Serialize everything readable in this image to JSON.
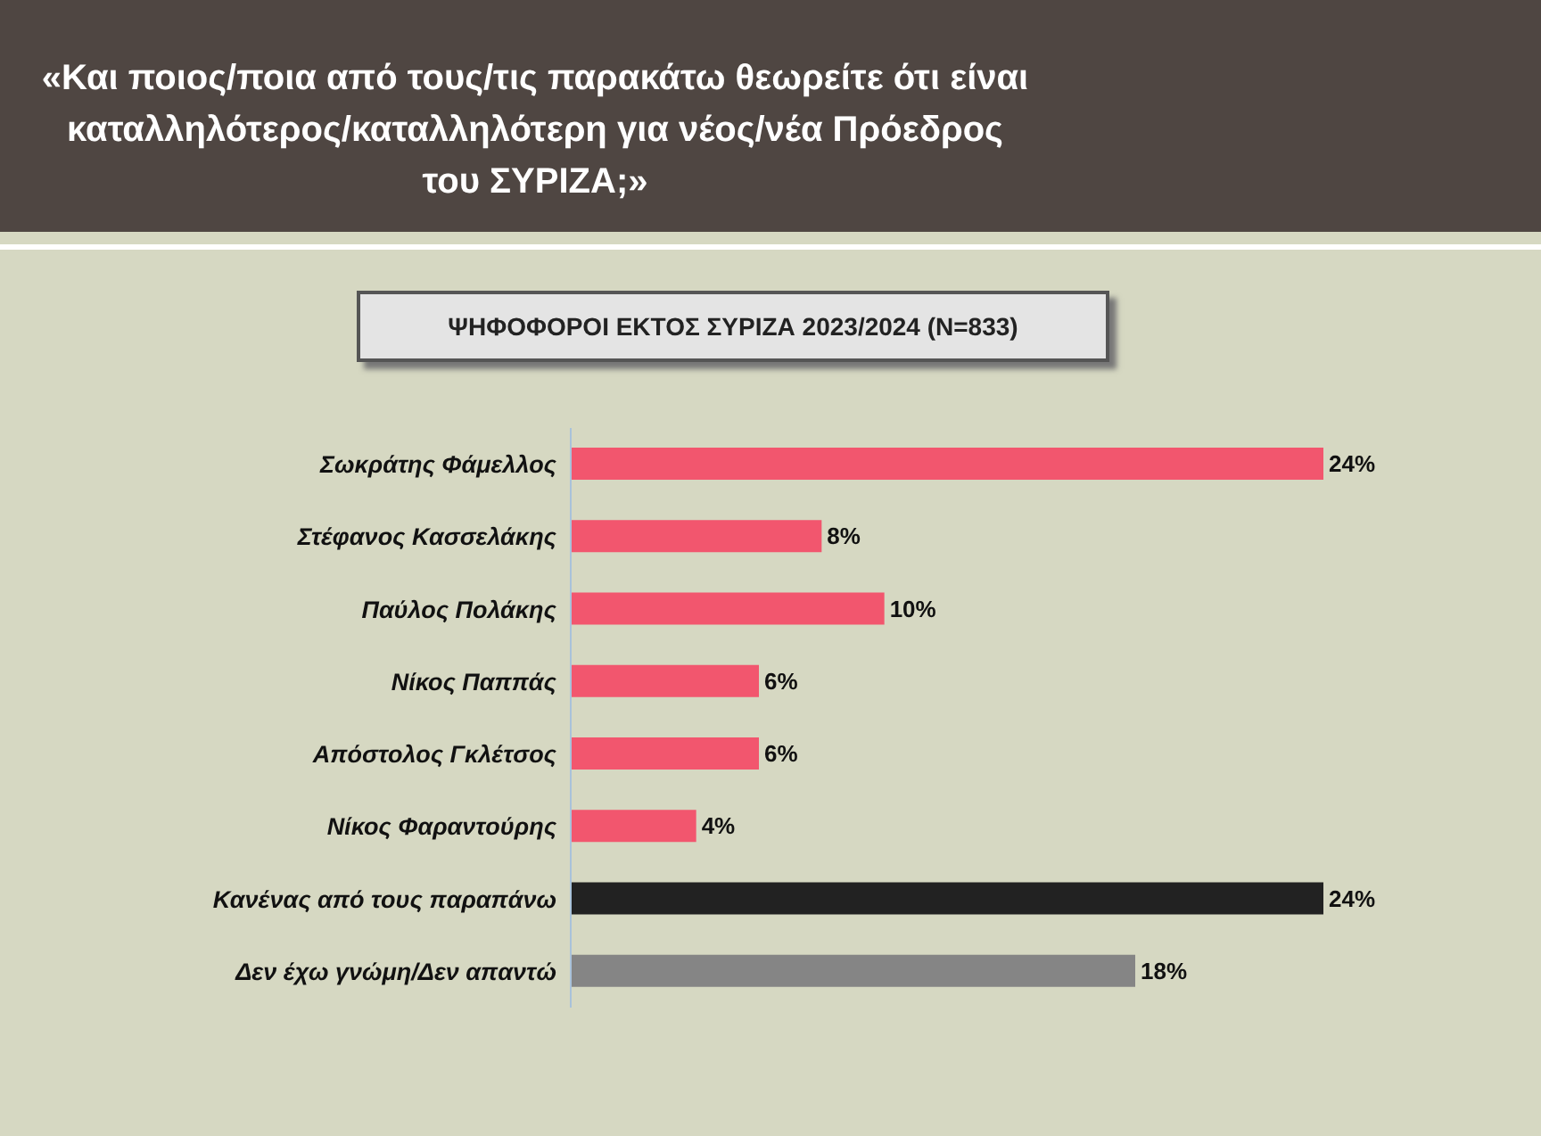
{
  "chart_data": {
    "type": "bar",
    "orientation": "horizontal",
    "title": "«Και ποιος/ποια από τους/τις παρακάτω θεωρείτε ότι είναι καταλληλότερος/καταλληλότερη για νέος/νέα Πρόεδρος του ΣΥΡΙΖΑ;»",
    "subtitle": "ΨΗΦΟΦΟΡΟΙ ΕΚΤΟΣ ΣΥΡΙΖΑ 2023/2024 (N=833)",
    "categories": [
      "Σωκράτης Φάμελλος",
      "Στέφανος Κασσελάκης",
      "Παύλος Πολάκης",
      "Νίκος Παππάς",
      "Απόστολος Γκλέτσος",
      "Νίκος Φαραντούρης",
      "Κανένας από τους παραπάνω",
      "Δεν έχω γνώμη/Δεν απαντώ"
    ],
    "values": [
      24,
      8,
      10,
      6,
      6,
      4,
      24,
      18
    ],
    "colors": [
      "#f2566e",
      "#f2566e",
      "#f2566e",
      "#f2566e",
      "#f2566e",
      "#f2566e",
      "#222222",
      "#858585"
    ],
    "value_labels": [
      "24%",
      "8%",
      "10%",
      "6%",
      "6%",
      "4%",
      "24%",
      "18%"
    ],
    "grid": false,
    "legend": false
  }
}
